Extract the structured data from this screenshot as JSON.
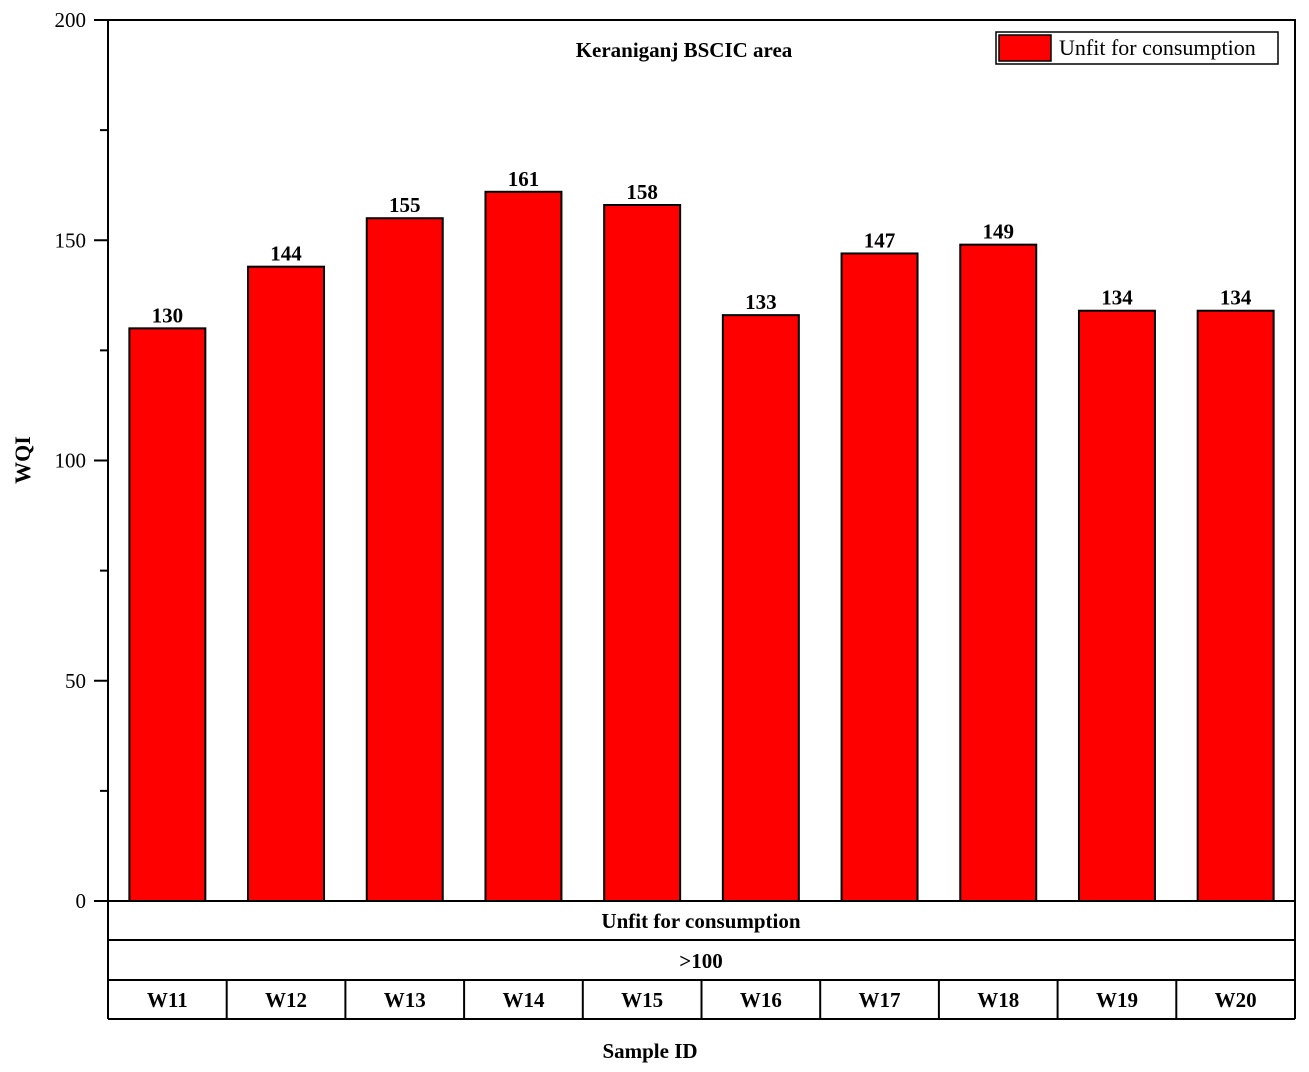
{
  "chart_data": {
    "type": "bar",
    "title": "Keraniganj BSCIC area",
    "xlabel": "Sample ID",
    "ylabel": "WQI",
    "ylim": [
      0,
      200
    ],
    "yticks": [
      0,
      50,
      100,
      150,
      200
    ],
    "yminor_step": 25,
    "categories": [
      "W11",
      "W12",
      "W13",
      "W14",
      "W15",
      "W16",
      "W17",
      "W18",
      "W19",
      "W20"
    ],
    "series": [
      {
        "name": "Unfit for consumption",
        "color": "#ff0000",
        "values": [
          130,
          144,
          155,
          161,
          158,
          133,
          147,
          149,
          134,
          134
        ]
      }
    ],
    "data_labels": [
      "130",
      "144",
      "155",
      "161",
      "158",
      "133",
      "147",
      "149",
      "134",
      "134"
    ],
    "legend": {
      "label": "Unfit for consumption",
      "placement": "top-right"
    },
    "category_table": {
      "class_label": "Unfit for consumption",
      "range_label": ">100"
    },
    "grid": false
  }
}
